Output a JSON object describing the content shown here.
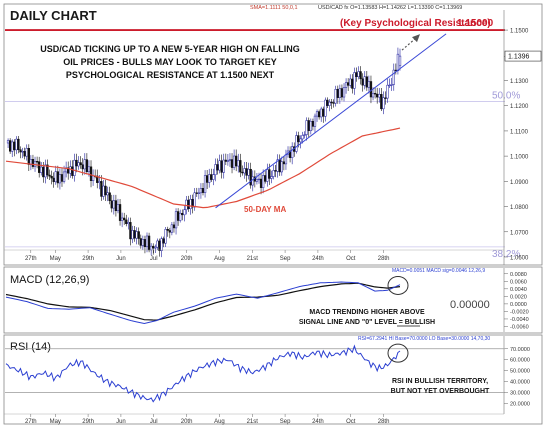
{
  "header": {
    "title": "DAILY CHART",
    "sma_readout": "SMA=1.1111  50,0,1",
    "price_readout": "USD/CAD fx O=1.13583 H=1.14262 L=1.13390 C=1.13969"
  },
  "annotations": {
    "main_lines": [
      "USD/CAD TICKING UP TO A NEW 5-YEAR HIGH ON FALLING",
      "OIL PRICES - BULLS MAY LOOK TO TARGET KEY",
      "PSYCHOLOGICAL RESISTANCE AT 1.1500 NEXT"
    ],
    "resistance_label": "(Key Psychological Resistance)",
    "resistance_value": "1.15000",
    "fib_50": "50.0%",
    "fib_382": "38.2%",
    "ma_label": "50-DAY MA",
    "macd_lines": [
      "MACD TRENDING HIGHER ABOVE",
      "SIGNAL LINE AND \"0\" LEVEL = BULLISH"
    ],
    "rsi_lines": [
      "RSI IN BULLISH TERRITORY,",
      "BUT NOT YET OVERBOUGHT"
    ]
  },
  "colors": {
    "up": "#1f1f9e",
    "down": "#111111",
    "ma": "#e04a3a",
    "trend": "#3a48d6",
    "resistance": "#cc1b2b",
    "fib": "#a09ad8",
    "macd": "#2b3fd1",
    "signal": "#111111",
    "rsi": "#2b3fd1",
    "axis_text": "#333333"
  },
  "chart_data": [
    {
      "type": "candlestick",
      "y_axis_ticks": [
        "1.1500",
        "1.1396",
        "1.1300",
        "1.1200",
        "1.1100",
        "1.1000",
        "1.0900",
        "1.0800",
        "1.0700",
        "1.0600"
      ],
      "last_price_label": "1.1396",
      "x_tick_labels": [
        "27th",
        "May",
        "29th",
        "Jun",
        "Jul",
        "20th",
        "Aug",
        "21st",
        "Sep",
        "24th",
        "Oct",
        "28th"
      ],
      "ylim": [
        1.058,
        1.154
      ],
      "ohlc": {
        "open": 1.13583,
        "high": 1.14262,
        "low": 1.1339,
        "close": 1.13969
      },
      "close_path": [
        [
          0,
          1.1052
        ],
        [
          6,
          1.1035
        ],
        [
          12,
          1.098
        ],
        [
          18,
          1.094
        ],
        [
          24,
          1.0905
        ],
        [
          30,
          1.0945
        ],
        [
          36,
          1.0975
        ],
        [
          42,
          1.0915
        ],
        [
          48,
          1.0845
        ],
        [
          54,
          1.0775
        ],
        [
          60,
          1.0695
        ],
        [
          66,
          1.0655
        ],
        [
          72,
          1.0635
        ],
        [
          78,
          1.071
        ],
        [
          84,
          1.078
        ],
        [
          90,
          1.0835
        ],
        [
          96,
          1.0905
        ],
        [
          102,
          1.0965
        ],
        [
          108,
          1.0985
        ],
        [
          114,
          1.0935
        ],
        [
          120,
          1.0895
        ],
        [
          126,
          1.0925
        ],
        [
          132,
          1.0975
        ],
        [
          138,
          1.1045
        ],
        [
          144,
          1.1115
        ],
        [
          150,
          1.1175
        ],
        [
          156,
          1.1225
        ],
        [
          162,
          1.1275
        ],
        [
          168,
          1.1325
        ],
        [
          172,
          1.1285
        ],
        [
          176,
          1.124
        ],
        [
          180,
          1.1215
        ],
        [
          184,
          1.1305
        ],
        [
          188,
          1.1396
        ]
      ],
      "moving_average_50": [
        [
          0,
          1.098
        ],
        [
          30,
          1.095
        ],
        [
          60,
          1.088
        ],
        [
          80,
          1.081
        ],
        [
          95,
          1.0795
        ],
        [
          110,
          1.082
        ],
        [
          125,
          1.0865
        ],
        [
          140,
          1.093
        ],
        [
          155,
          1.101
        ],
        [
          170,
          1.108
        ],
        [
          188,
          1.1111
        ]
      ],
      "trendline": [
        [
          100,
          1.0795
        ],
        [
          210,
          1.1485
        ]
      ],
      "resistance_level": 1.15,
      "fib_50_level": 1.1217,
      "fib_382_level": 1.064
    },
    {
      "type": "line",
      "name": "MACD (12,26,9)",
      "readout": "MACD=0.0051  MACD sig=0.0046   12,26,9",
      "y_axis_ticks": [
        "0.0080",
        "0.0060",
        "0.0040",
        "0.0020",
        "0.0000",
        "-0.0020",
        "-0.0040",
        "-0.0060"
      ],
      "zero_label": "0.00000",
      "ylim": [
        -0.0072,
        0.009
      ],
      "series": [
        {
          "name": "MACD",
          "values": [
            [
              0,
              0.0018
            ],
            [
              10,
              0.0006
            ],
            [
              20,
              -0.0012
            ],
            [
              30,
              -0.0014
            ],
            [
              40,
              -0.001
            ],
            [
              50,
              -0.0028
            ],
            [
              60,
              -0.0045
            ],
            [
              66,
              -0.0052
            ],
            [
              72,
              -0.0044
            ],
            [
              80,
              -0.0022
            ],
            [
              90,
              -0.0006
            ],
            [
              100,
              0.0015
            ],
            [
              110,
              0.0026
            ],
            [
              120,
              0.0015
            ],
            [
              130,
              0.003
            ],
            [
              140,
              0.0046
            ],
            [
              150,
              0.0056
            ],
            [
              160,
              0.0058
            ],
            [
              168,
              0.0056
            ],
            [
              176,
              0.0034
            ],
            [
              182,
              0.0036
            ],
            [
              188,
              0.0051
            ]
          ]
        },
        {
          "name": "Signal",
          "values": [
            [
              0,
              0.0025
            ],
            [
              10,
              0.0014
            ],
            [
              20,
              0.0
            ],
            [
              30,
              -0.0008
            ],
            [
              40,
              -0.0009
            ],
            [
              50,
              -0.0018
            ],
            [
              60,
              -0.0033
            ],
            [
              66,
              -0.0042
            ],
            [
              72,
              -0.0043
            ],
            [
              80,
              -0.0032
            ],
            [
              90,
              -0.0016
            ],
            [
              100,
              0.0003
            ],
            [
              110,
              0.0017
            ],
            [
              120,
              0.0018
            ],
            [
              130,
              0.0023
            ],
            [
              140,
              0.0035
            ],
            [
              150,
              0.0046
            ],
            [
              160,
              0.0053
            ],
            [
              168,
              0.0055
            ],
            [
              176,
              0.0045
            ],
            [
              182,
              0.0042
            ],
            [
              188,
              0.0046
            ]
          ]
        }
      ]
    },
    {
      "type": "line",
      "name": "RSI (14)",
      "readout": "RSI=67.2941  HI Base=70.0000  LO Base=30.0000   14,70,30",
      "y_axis_ticks": [
        "70.0000",
        "60.0000",
        "50.0000",
        "40.0000",
        "30.0000",
        "20.0000"
      ],
      "x_tick_labels": [
        "27th",
        "May",
        "29th",
        "Jun",
        "Jul",
        "20th",
        "Aug",
        "21st",
        "Sep",
        "24th",
        "Oct",
        "28th"
      ],
      "ylim": [
        14,
        78
      ],
      "hi_base": 70,
      "lo_base": 30,
      "values": [
        [
          0,
          55
        ],
        [
          6,
          50
        ],
        [
          12,
          44
        ],
        [
          18,
          48
        ],
        [
          24,
          43
        ],
        [
          30,
          55
        ],
        [
          36,
          58
        ],
        [
          42,
          48
        ],
        [
          48,
          40
        ],
        [
          54,
          36
        ],
        [
          60,
          30
        ],
        [
          66,
          25
        ],
        [
          70,
          23
        ],
        [
          76,
          30
        ],
        [
          84,
          42
        ],
        [
          92,
          52
        ],
        [
          100,
          58
        ],
        [
          106,
          60
        ],
        [
          112,
          52
        ],
        [
          118,
          48
        ],
        [
          124,
          54
        ],
        [
          130,
          62
        ],
        [
          136,
          66
        ],
        [
          142,
          62
        ],
        [
          148,
          67
        ],
        [
          154,
          64
        ],
        [
          160,
          66
        ],
        [
          166,
          70
        ],
        [
          170,
          63
        ],
        [
          174,
          56
        ],
        [
          178,
          52
        ],
        [
          182,
          55
        ],
        [
          188,
          67
        ]
      ]
    }
  ]
}
